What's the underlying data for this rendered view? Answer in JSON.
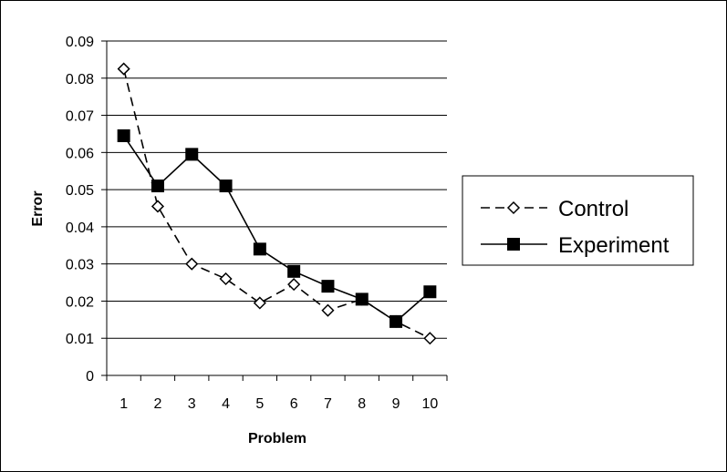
{
  "chart_data": {
    "type": "line",
    "categories": [
      "1",
      "2",
      "3",
      "4",
      "5",
      "6",
      "7",
      "8",
      "9",
      "10"
    ],
    "xlabel": "Problem",
    "ylabel": "Error",
    "ylim": [
      0,
      0.09
    ],
    "y_ticks": [
      "0",
      "0.01",
      "0.02",
      "0.03",
      "0.04",
      "0.05",
      "0.06",
      "0.07",
      "0.08",
      "0.09"
    ],
    "grid": "horizontal",
    "legend_position": "right",
    "series": [
      {
        "name": "Control",
        "values": [
          0.0825,
          0.0455,
          0.03,
          0.026,
          0.0195,
          0.0245,
          0.0175,
          0.0205,
          0.0145,
          0.01
        ],
        "line_style": "dashed",
        "marker": "open-diamond",
        "color": "#000000"
      },
      {
        "name": "Experiment",
        "values": [
          0.0645,
          0.051,
          0.0595,
          0.051,
          0.034,
          0.028,
          0.024,
          0.0205,
          0.0145,
          0.0225
        ],
        "line_style": "solid",
        "marker": "filled-square",
        "color": "#000000"
      }
    ]
  }
}
